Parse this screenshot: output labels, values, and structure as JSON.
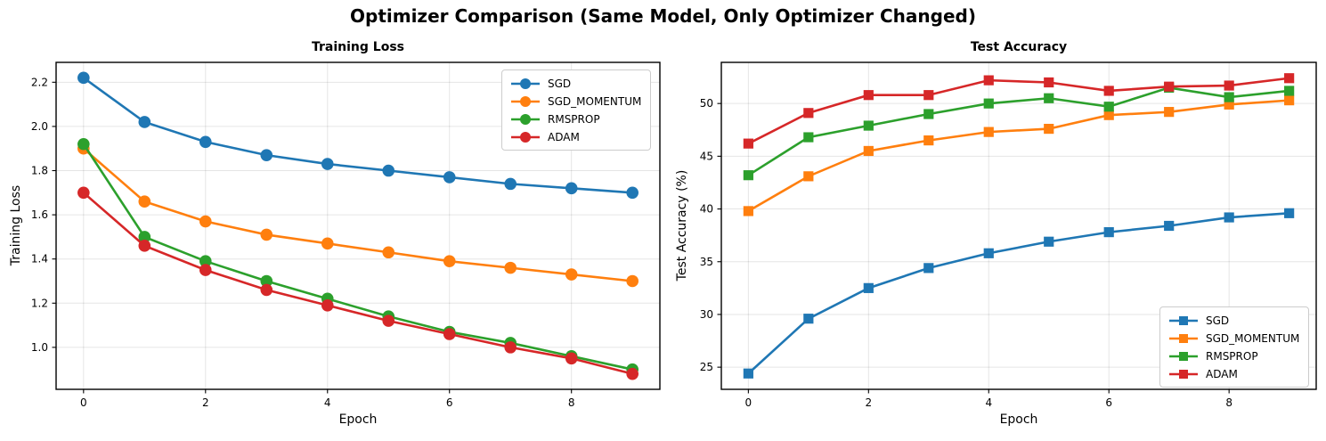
{
  "figure": {
    "title": "Optimizer Comparison (Same Model, Only Optimizer Changed)",
    "background": "#ffffff"
  },
  "chart_data": [
    {
      "type": "line",
      "title": "Training Loss",
      "xlabel": "Epoch",
      "ylabel": "Training Loss",
      "marker": "circle",
      "grid": true,
      "legend_position": "upper right",
      "x": [
        0,
        1,
        2,
        3,
        4,
        5,
        6,
        7,
        8,
        9
      ],
      "xlim": [
        -0.45,
        9.45
      ],
      "ylim": [
        0.81,
        2.29
      ],
      "xticks": [
        0,
        2,
        4,
        6,
        8
      ],
      "xtick_labels": [
        "0",
        "2",
        "4",
        "6",
        "8"
      ],
      "yticks": [
        1.0,
        1.2,
        1.4,
        1.6,
        1.8,
        2.0,
        2.2
      ],
      "ytick_labels": [
        "1.0",
        "1.2",
        "1.4",
        "1.6",
        "1.8",
        "2.0",
        "2.2"
      ],
      "series": [
        {
          "name": "SGD",
          "color": "#1f77b4",
          "values": [
            2.22,
            2.02,
            1.93,
            1.87,
            1.83,
            1.8,
            1.77,
            1.74,
            1.72,
            1.7
          ]
        },
        {
          "name": "SGD_MOMENTUM",
          "color": "#ff7f0e",
          "values": [
            1.9,
            1.66,
            1.57,
            1.51,
            1.47,
            1.43,
            1.39,
            1.36,
            1.33,
            1.3
          ]
        },
        {
          "name": "RMSPROP",
          "color": "#2ca02c",
          "values": [
            1.92,
            1.5,
            1.39,
            1.3,
            1.22,
            1.14,
            1.07,
            1.02,
            0.96,
            0.9
          ]
        },
        {
          "name": "ADAM",
          "color": "#d62728",
          "values": [
            1.7,
            1.46,
            1.35,
            1.26,
            1.19,
            1.12,
            1.06,
            1.0,
            0.95,
            0.88
          ]
        }
      ]
    },
    {
      "type": "line",
      "title": "Test Accuracy",
      "xlabel": "Epoch",
      "ylabel": "Test Accuracy (%)",
      "marker": "square",
      "grid": true,
      "legend_position": "lower right",
      "x": [
        0,
        1,
        2,
        3,
        4,
        5,
        6,
        7,
        8,
        9
      ],
      "xlim": [
        -0.45,
        9.45
      ],
      "ylim": [
        22.9,
        53.9
      ],
      "xticks": [
        0,
        2,
        4,
        6,
        8
      ],
      "xtick_labels": [
        "0",
        "2",
        "4",
        "6",
        "8"
      ],
      "yticks": [
        25,
        30,
        35,
        40,
        45,
        50
      ],
      "ytick_labels": [
        "25",
        "30",
        "35",
        "40",
        "45",
        "50"
      ],
      "series": [
        {
          "name": "SGD",
          "color": "#1f77b4",
          "values": [
            24.4,
            29.6,
            32.5,
            34.4,
            35.8,
            36.9,
            37.8,
            38.4,
            39.2,
            39.6
          ]
        },
        {
          "name": "SGD_MOMENTUM",
          "color": "#ff7f0e",
          "values": [
            39.8,
            43.1,
            45.5,
            46.5,
            47.3,
            47.6,
            48.9,
            49.2,
            49.9,
            50.3
          ]
        },
        {
          "name": "RMSPROP",
          "color": "#2ca02c",
          "values": [
            43.2,
            46.8,
            47.9,
            49.0,
            50.0,
            50.5,
            49.7,
            51.5,
            50.6,
            51.2
          ]
        },
        {
          "name": "ADAM",
          "color": "#d62728",
          "values": [
            46.2,
            49.1,
            50.8,
            50.8,
            52.2,
            52.0,
            51.2,
            51.6,
            51.7,
            52.4
          ]
        }
      ]
    }
  ]
}
